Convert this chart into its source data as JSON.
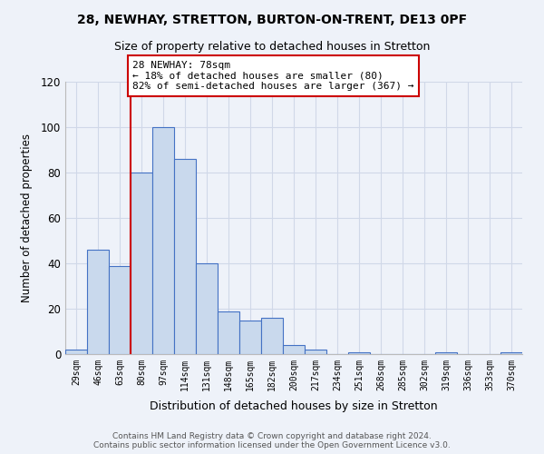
{
  "title1": "28, NEWHAY, STRETTON, BURTON-ON-TRENT, DE13 0PF",
  "title2": "Size of property relative to detached houses in Stretton",
  "xlabel": "Distribution of detached houses by size in Stretton",
  "ylabel": "Number of detached properties",
  "bar_labels": [
    "29sqm",
    "46sqm",
    "63sqm",
    "80sqm",
    "97sqm",
    "114sqm",
    "131sqm",
    "148sqm",
    "165sqm",
    "182sqm",
    "200sqm",
    "217sqm",
    "234sqm",
    "251sqm",
    "268sqm",
    "285sqm",
    "302sqm",
    "319sqm",
    "336sqm",
    "353sqm",
    "370sqm"
  ],
  "bar_values": [
    2,
    46,
    39,
    80,
    100,
    86,
    40,
    19,
    15,
    16,
    4,
    2,
    0,
    1,
    0,
    0,
    0,
    1,
    0,
    0,
    1
  ],
  "bar_color": "#c9d9ed",
  "bar_edge_color": "#4472c4",
  "marker_line_color": "#cc0000",
  "annotation_box_edge_color": "#cc0000",
  "annotation_label": "28 NEWHAY: 78sqm",
  "annotation_line1": "← 18% of detached houses are smaller (80)",
  "annotation_line2": "82% of semi-detached houses are larger (367) →",
  "ylim": [
    0,
    120
  ],
  "yticks": [
    0,
    20,
    40,
    60,
    80,
    100,
    120
  ],
  "footer1": "Contains HM Land Registry data © Crown copyright and database right 2024.",
  "footer2": "Contains public sector information licensed under the Open Government Licence v3.0.",
  "bg_color": "#eef2f9",
  "grid_color": "#d0d8e8"
}
